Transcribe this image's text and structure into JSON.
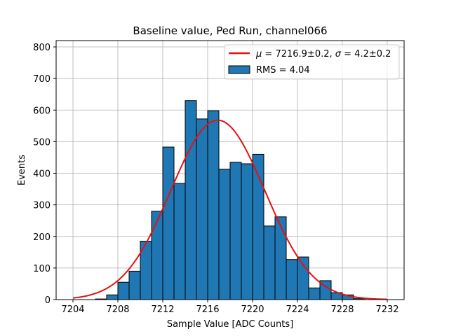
{
  "chart_data": {
    "type": "bar",
    "title": "Baseline value, Ped Run, channel066",
    "xlabel": "Sample Value [ADC Counts]",
    "ylabel": "Events",
    "xlim": [
      7202.5,
      7233.5
    ],
    "ylim": [
      0,
      820
    ],
    "xticks": [
      7204,
      7208,
      7212,
      7216,
      7220,
      7224,
      7228,
      7232
    ],
    "yticks": [
      0,
      100,
      200,
      300,
      400,
      500,
      600,
      700,
      800
    ],
    "grid": true,
    "legend_position": "top-right",
    "bin_width": 1,
    "bins": [
      {
        "x": 7206.5,
        "y": 2
      },
      {
        "x": 7207.5,
        "y": 15
      },
      {
        "x": 7208.5,
        "y": 55
      },
      {
        "x": 7209.5,
        "y": 90
      },
      {
        "x": 7210.5,
        "y": 185
      },
      {
        "x": 7211.5,
        "y": 280
      },
      {
        "x": 7212.5,
        "y": 483
      },
      {
        "x": 7213.5,
        "y": 368
      },
      {
        "x": 7214.5,
        "y": 630
      },
      {
        "x": 7215.5,
        "y": 572
      },
      {
        "x": 7216.5,
        "y": 598
      },
      {
        "x": 7217.5,
        "y": 413
      },
      {
        "x": 7218.5,
        "y": 435
      },
      {
        "x": 7219.5,
        "y": 430
      },
      {
        "x": 7220.5,
        "y": 460
      },
      {
        "x": 7221.5,
        "y": 233
      },
      {
        "x": 7222.5,
        "y": 262
      },
      {
        "x": 7223.5,
        "y": 127
      },
      {
        "x": 7224.5,
        "y": 135
      },
      {
        "x": 7225.5,
        "y": 37
      },
      {
        "x": 7226.5,
        "y": 60
      },
      {
        "x": 7227.5,
        "y": 22
      },
      {
        "x": 7228.5,
        "y": 15
      },
      {
        "x": 7229.5,
        "y": 3
      }
    ],
    "fit": {
      "mu": 7216.9,
      "sigma": 4.2,
      "amplitude": 568,
      "x_range": [
        7204,
        7232
      ]
    },
    "bar_color": "#1f77b4",
    "fit_color": "#e8100f",
    "legend": [
      {
        "label_prefix": "μ",
        "label_rest": " = 7216.9±0.2, ",
        "label_sigma": "σ",
        "label_tail": " = 4.2±0.2",
        "kind": "line"
      },
      {
        "label": "RMS = 4.04",
        "kind": "patch"
      }
    ]
  }
}
